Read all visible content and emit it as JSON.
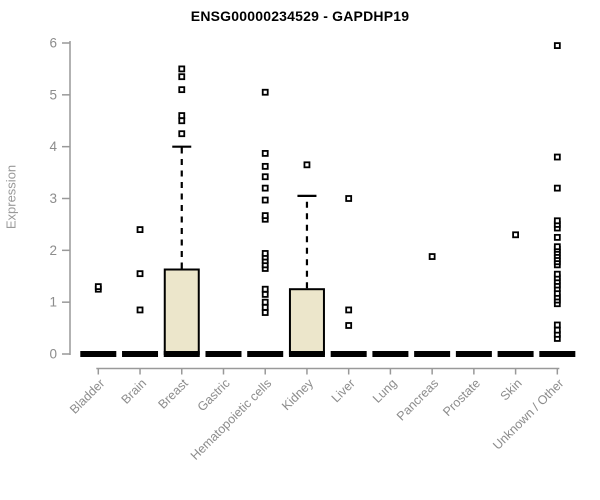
{
  "chart_data": {
    "type": "boxplot",
    "title": "ENSG00000234529 - GAPDHP19",
    "ylabel": "Expression",
    "ylim": [
      0,
      6
    ],
    "yticks": [
      0,
      1,
      2,
      3,
      4,
      5,
      6
    ],
    "grid": "off",
    "legend": "none",
    "categories": [
      "Bladder",
      "Brain",
      "Breast",
      "Gastric",
      "Hematopoietic cells",
      "Kidney",
      "Liver",
      "Lung",
      "Pancreas",
      "Prostate",
      "Skin",
      "Unknown / Other"
    ],
    "boxes": [
      {
        "category": "Bladder",
        "q1": 0,
        "median": 0,
        "q3": 0,
        "whisker_high": 0,
        "outliers": [
          1.25,
          1.3
        ]
      },
      {
        "category": "Brain",
        "q1": 0,
        "median": 0,
        "q3": 0,
        "whisker_high": 0,
        "outliers": [
          0.85,
          1.55,
          2.4
        ]
      },
      {
        "category": "Breast",
        "q1": 0,
        "median": 0,
        "q3": 1.63,
        "whisker_high": 4.0,
        "outliers": [
          4.25,
          4.5,
          4.6,
          5.1,
          5.35,
          5.5
        ]
      },
      {
        "category": "Gastric",
        "q1": 0,
        "median": 0,
        "q3": 0,
        "whisker_high": 0,
        "outliers": []
      },
      {
        "category": "Hematopoietic cells",
        "q1": 0,
        "median": 0,
        "q3": 0,
        "whisker_high": 0,
        "outliers": [
          0.8,
          0.9,
          1.0,
          1.15,
          1.25,
          1.65,
          1.72,
          1.8,
          1.87,
          1.94,
          2.6,
          2.67,
          2.97,
          3.2,
          3.42,
          3.62,
          3.87,
          5.05
        ]
      },
      {
        "category": "Kidney",
        "q1": 0,
        "median": 0,
        "q3": 1.25,
        "whisker_high": 3.05,
        "outliers": [
          3.65
        ]
      },
      {
        "category": "Liver",
        "q1": 0,
        "median": 0,
        "q3": 0,
        "whisker_high": 0,
        "outliers": [
          0.55,
          0.85,
          3.0
        ]
      },
      {
        "category": "Lung",
        "q1": 0,
        "median": 0,
        "q3": 0,
        "whisker_high": 0,
        "outliers": []
      },
      {
        "category": "Pancreas",
        "q1": 0,
        "median": 0,
        "q3": 0,
        "whisker_high": 0,
        "outliers": [
          1.88
        ]
      },
      {
        "category": "Prostate",
        "q1": 0,
        "median": 0,
        "q3": 0,
        "whisker_high": 0,
        "outliers": []
      },
      {
        "category": "Skin",
        "q1": 0,
        "median": 0,
        "q3": 0,
        "whisker_high": 0,
        "outliers": [
          2.3
        ]
      },
      {
        "category": "Unknown / Other",
        "q1": 0,
        "median": 0,
        "q3": 0,
        "whisker_high": 0,
        "outliers": [
          0.3,
          0.38,
          0.46,
          0.56,
          0.97,
          1.04,
          1.1,
          1.17,
          1.26,
          1.33,
          1.4,
          1.47,
          1.54,
          1.72,
          1.78,
          1.84,
          1.9,
          1.96,
          2.02,
          2.07,
          2.25,
          2.43,
          2.5,
          2.57,
          3.2,
          3.8,
          5.95
        ]
      }
    ],
    "colors": {
      "box_fill": "#ece6cb",
      "box_stroke": "#000000",
      "axis": "#999999",
      "tick_label": "#8c8c8c",
      "title": "#000000"
    }
  }
}
